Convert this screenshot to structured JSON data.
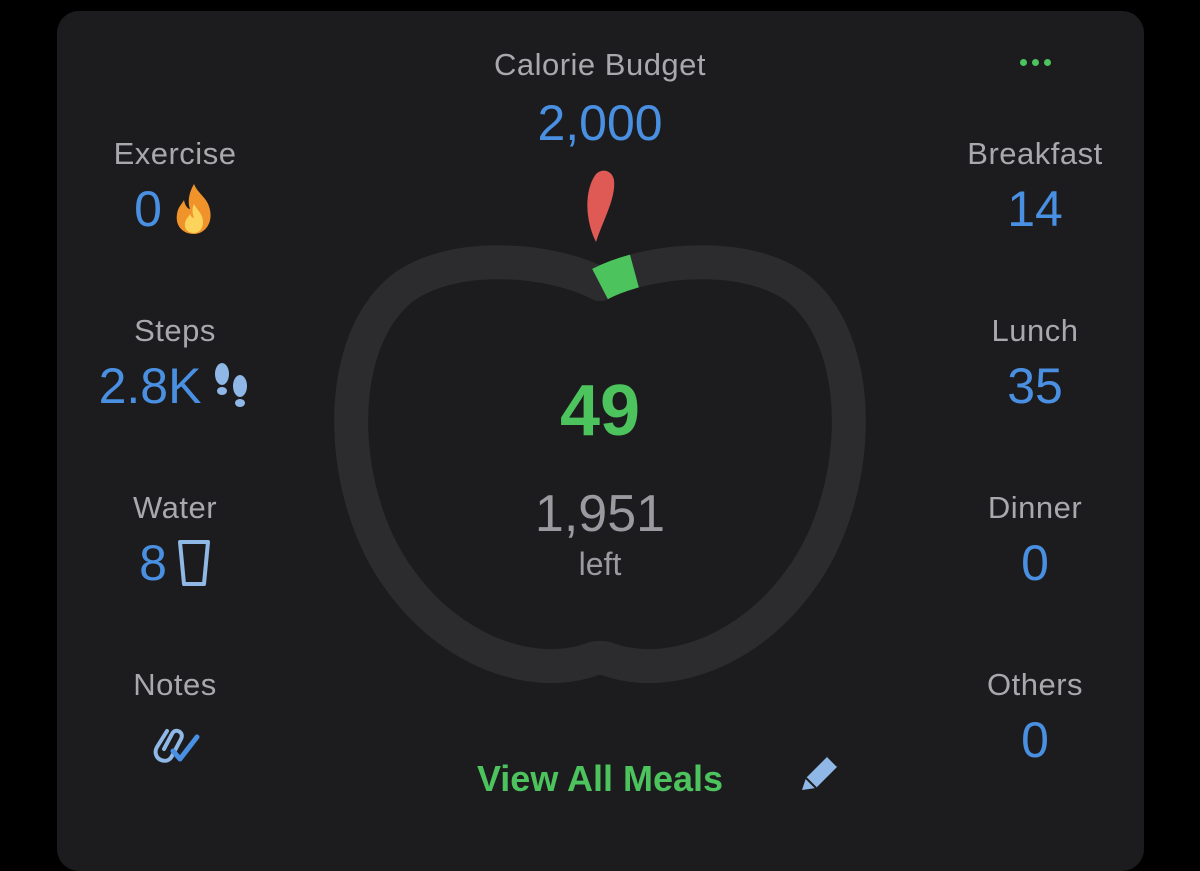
{
  "header": {
    "budget_label": "Calorie Budget",
    "budget_value": "2,000"
  },
  "left": {
    "exercise": {
      "label": "Exercise",
      "value": "0",
      "icon": "flame-icon"
    },
    "steps": {
      "label": "Steps",
      "value": "2.8K",
      "icon": "footprints-icon"
    },
    "water": {
      "label": "Water",
      "value": "8",
      "icon": "glass-icon"
    },
    "notes": {
      "label": "Notes",
      "icon": "paperclip-check-icon"
    }
  },
  "right": {
    "breakfast": {
      "label": "Breakfast",
      "value": "14"
    },
    "lunch": {
      "label": "Lunch",
      "value": "35"
    },
    "dinner": {
      "label": "Dinner",
      "value": "0"
    },
    "others": {
      "label": "Others",
      "value": "0"
    }
  },
  "center": {
    "consumed": "49",
    "remaining": "1,951",
    "remaining_label": "left",
    "progress_fraction": 0.0245
  },
  "footer": {
    "view_all_label": "View All Meals"
  },
  "colors": {
    "accent_blue": "#4a90e2",
    "accent_green": "#4cc35c",
    "leaf_red": "#e05a55",
    "card_bg": "#1c1c1e",
    "ring_track": "#2c2c2e",
    "label_gray": "#a8a8ad"
  }
}
